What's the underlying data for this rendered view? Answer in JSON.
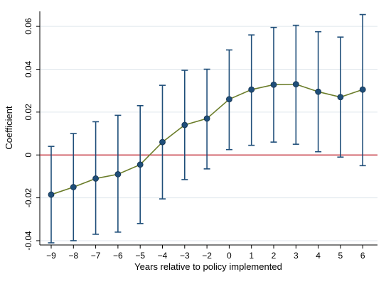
{
  "chart_data": {
    "type": "line",
    "title": "",
    "xlabel": "Years relative to policy implemented",
    "ylabel": "Coefficient",
    "categories": [
      "-9",
      "-8",
      "-7",
      "-6",
      "-5",
      "-4",
      "-3",
      "-2",
      "0",
      "1",
      "2",
      "3",
      "4",
      "5",
      "6"
    ],
    "ytick_labels": [
      "-0.04",
      "-0.02",
      "0",
      "0.02",
      "0.04",
      "0.06"
    ],
    "yticks": [
      -0.04,
      -0.02,
      0,
      0.02,
      0.04,
      0.06
    ],
    "ylim": [
      -0.042,
      0.067
    ],
    "grid": true,
    "reference_line": 0,
    "series": [
      {
        "values": [
          -0.0185,
          -0.015,
          -0.011,
          -0.009,
          -0.0045,
          0.006,
          0.014,
          0.017,
          0.026,
          0.0305,
          0.0328,
          0.033,
          0.0295,
          0.027,
          0.0305
        ],
        "ci_low": [
          -0.041,
          -0.04,
          -0.037,
          -0.036,
          -0.032,
          -0.0205,
          -0.0115,
          -0.0065,
          0.0025,
          0.0045,
          0.006,
          0.005,
          0.0015,
          -0.001,
          -0.005
        ],
        "ci_high": [
          0.004,
          0.01,
          0.0155,
          0.0185,
          0.023,
          0.0325,
          0.0395,
          0.04,
          0.049,
          0.056,
          0.0595,
          0.0605,
          0.0575,
          0.055,
          0.0655
        ]
      }
    ],
    "colors": {
      "line": "#6b7d2a",
      "marker": "#1f4e79",
      "errorbar": "#1f4e79",
      "zero_line": "#c0202a",
      "grid": "#dfe6ec",
      "frame": "#000000"
    }
  }
}
